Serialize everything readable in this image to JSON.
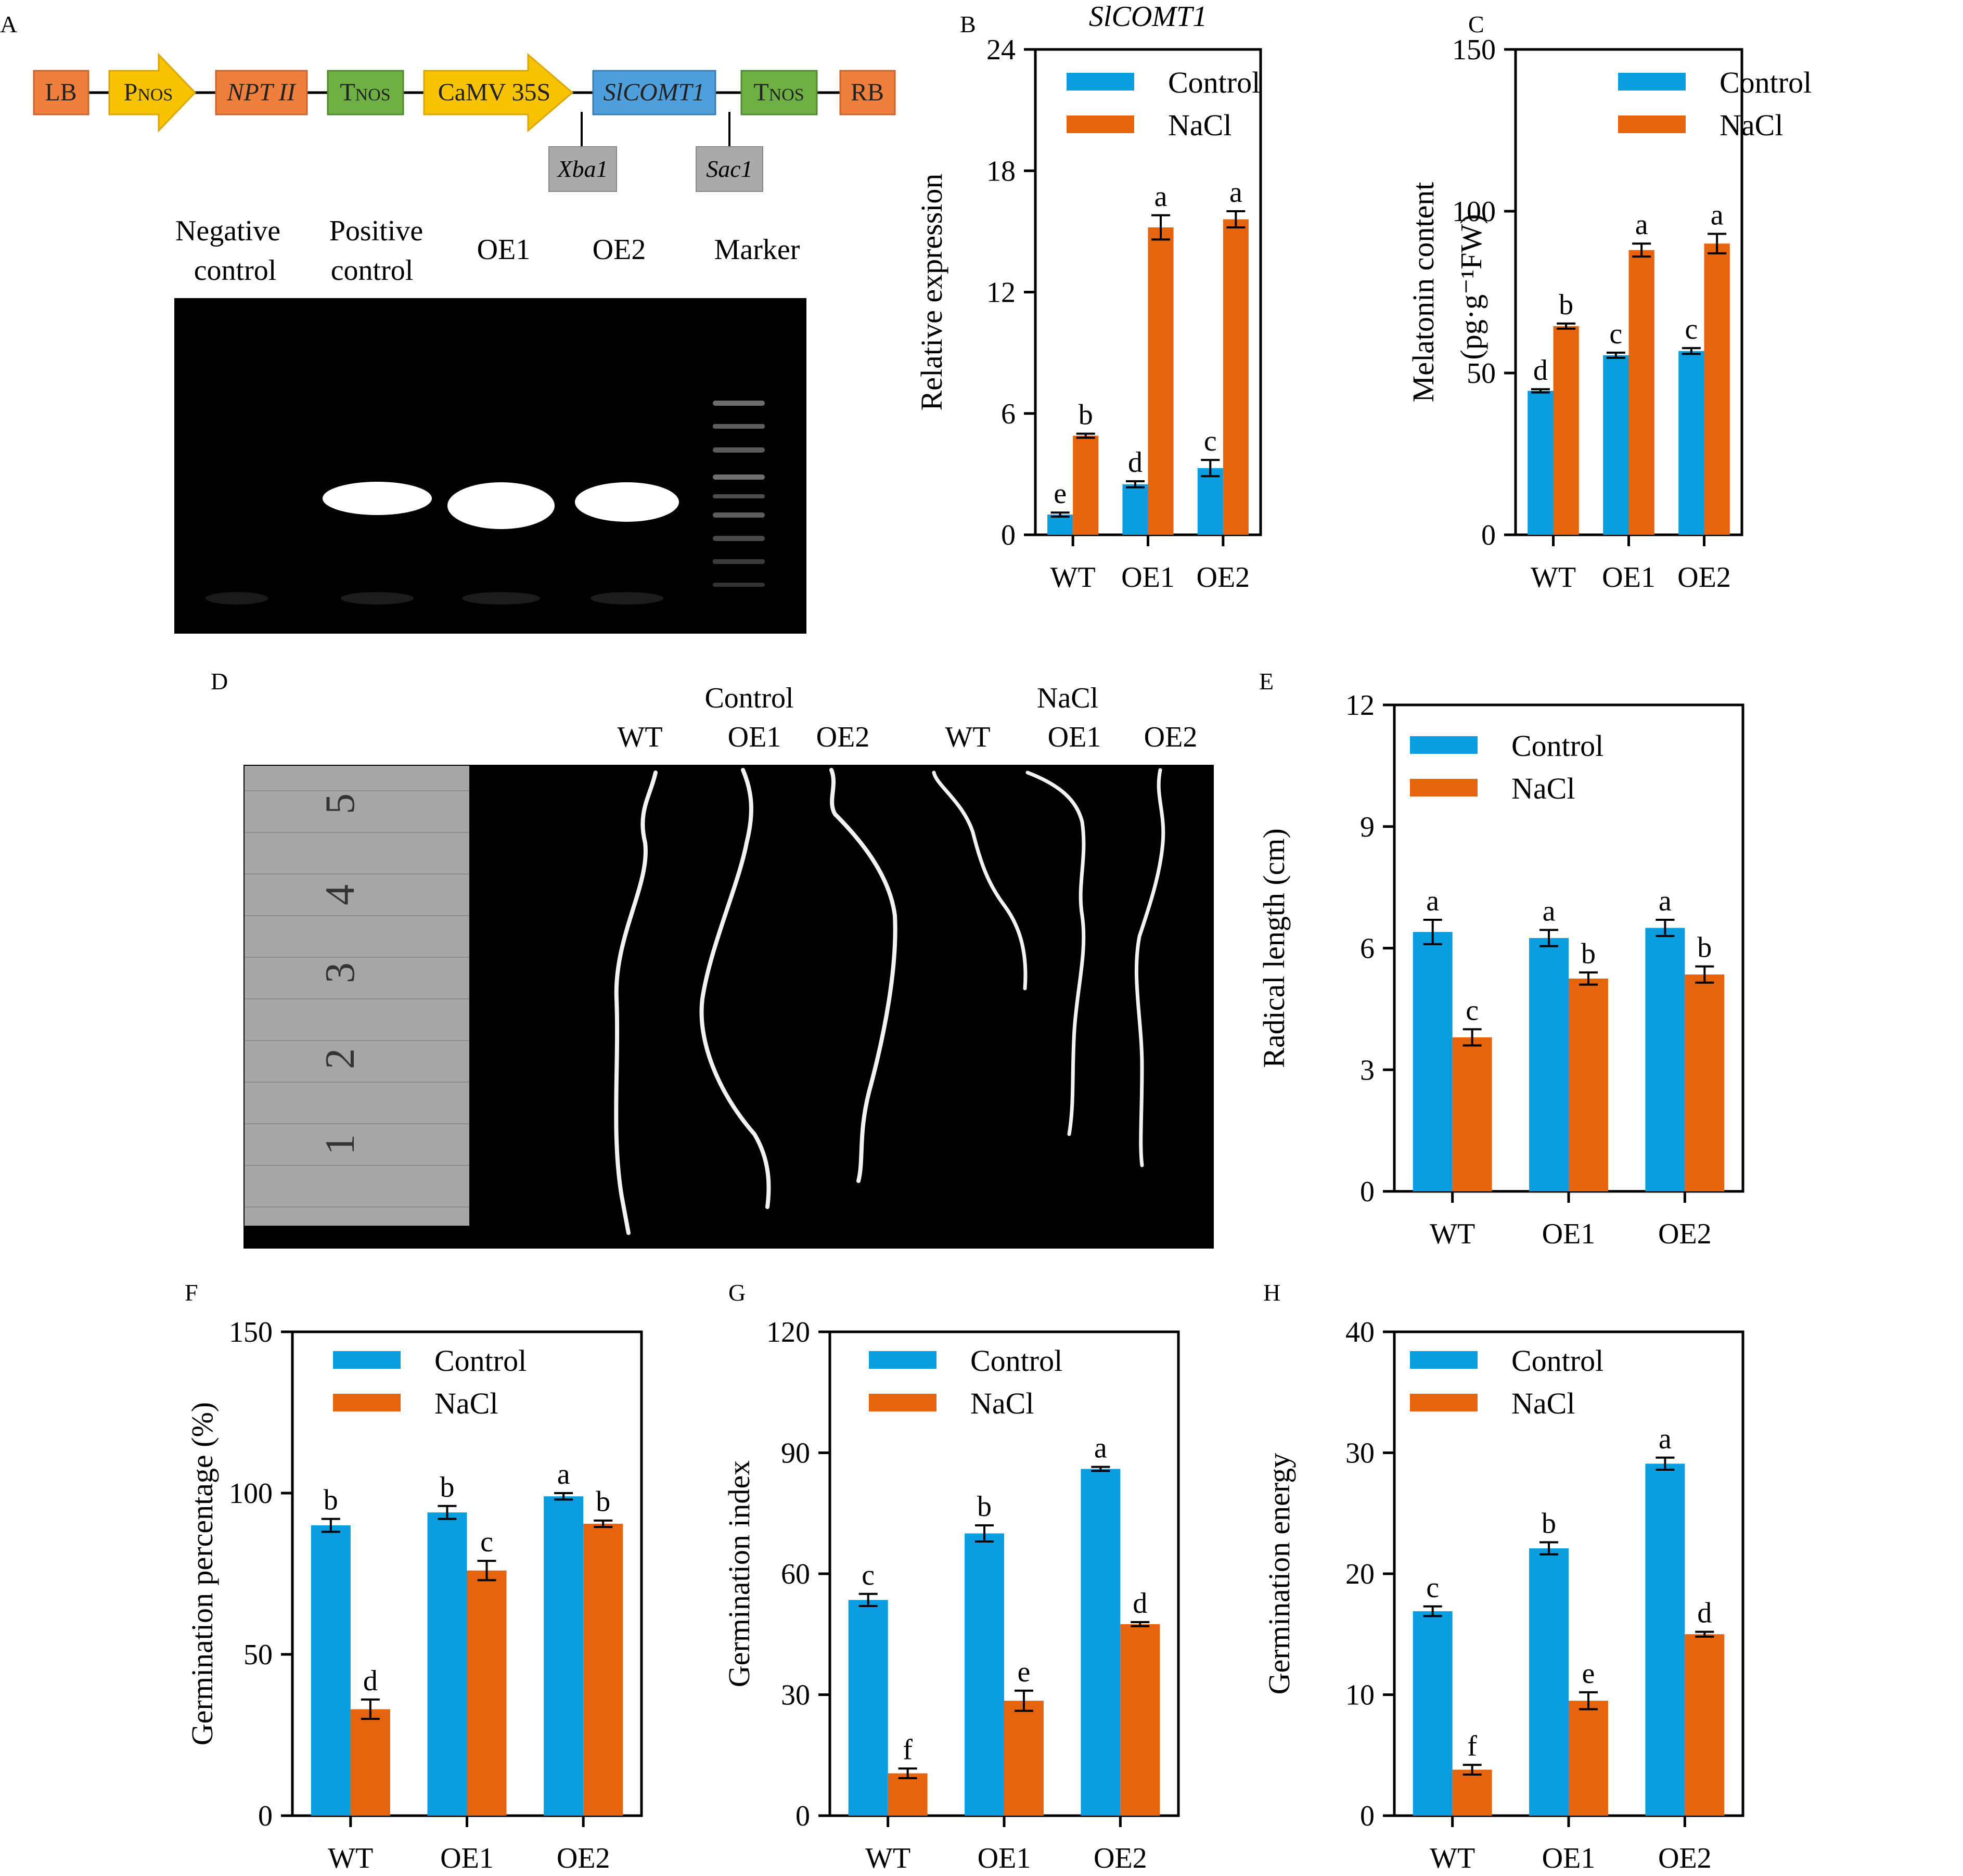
{
  "colors": {
    "control": "#0a9de0",
    "nacl": "#e7640f",
    "lb": "#ef7f3c",
    "pnos": "#f7c200",
    "npt": "#ef7f3c",
    "tnos": "#6eb043",
    "camv": "#f7c200",
    "gene": "#4f9fdc",
    "rb": "#ef7f3c",
    "site": "#aaaaaa",
    "gel": "#000000",
    "ruler": "#a6a6a6"
  },
  "panel_a": {
    "label": "A",
    "construct": [
      {
        "text": "LB",
        "sub": ""
      },
      {
        "text": "P",
        "sub": "NOS"
      },
      {
        "text": "NPT II",
        "sub": ""
      },
      {
        "text": "T",
        "sub": "NOS"
      },
      {
        "text": "CaMV 35S",
        "sub": ""
      },
      {
        "text": "SlCOMT1",
        "sub": ""
      },
      {
        "text": "T",
        "sub": "NOS"
      },
      {
        "text": "RB",
        "sub": ""
      }
    ],
    "sites": [
      "Xba1",
      "Sac1"
    ],
    "gel_lanes": [
      {
        "line1": "Negative",
        "line2": "control"
      },
      {
        "line1": "Positive",
        "line2": "control"
      },
      {
        "line1": "OE1",
        "line2": ""
      },
      {
        "line1": "OE2",
        "line2": ""
      },
      {
        "line1": "Marker",
        "line2": ""
      }
    ]
  },
  "panel_d": {
    "label": "D",
    "groups": [
      "Control",
      "NaCl"
    ],
    "lanes": [
      "WT",
      "OE1",
      "OE2",
      "WT",
      "OE1",
      "OE2"
    ],
    "ruler_marks": [
      "5",
      "4",
      "3",
      "2",
      "1"
    ]
  },
  "chart_data": [
    {
      "id": "B",
      "type": "bar",
      "title": "SlCOMT1",
      "ylabel": "Relative expression",
      "ylabel2": "",
      "ylim": [
        0,
        24
      ],
      "yticks": [
        "0",
        "6",
        "12",
        "18",
        "24"
      ],
      "categories": [
        "WT",
        "OE1",
        "OE2"
      ],
      "series": [
        {
          "name": "Control",
          "values": [
            1.0,
            2.5,
            3.3
          ],
          "errors": [
            0.1,
            0.15,
            0.4
          ],
          "letters": [
            "e",
            "d",
            "c"
          ]
        },
        {
          "name": "NaCl",
          "values": [
            4.9,
            15.2,
            15.6
          ],
          "errors": [
            0.1,
            0.6,
            0.4
          ],
          "letters": [
            "b",
            "a",
            "a"
          ]
        }
      ]
    },
    {
      "id": "C",
      "type": "bar",
      "title": "",
      "ylabel": "Melatonin content",
      "ylabel2": "(pg·g⁻¹FW)",
      "ylim": [
        0,
        150
      ],
      "yticks": [
        "0",
        "50",
        "100",
        "150"
      ],
      "categories": [
        "WT",
        "OE1",
        "OE2"
      ],
      "series": [
        {
          "name": "Control",
          "values": [
            44.5,
            55.5,
            56.8
          ],
          "errors": [
            0.5,
            0.8,
            0.9
          ],
          "letters": [
            "d",
            "c",
            "c"
          ]
        },
        {
          "name": "NaCl",
          "values": [
            64.5,
            88.0,
            90.0
          ],
          "errors": [
            0.8,
            2.0,
            3.0
          ],
          "letters": [
            "b",
            "a",
            "a"
          ]
        }
      ]
    },
    {
      "id": "E",
      "type": "bar",
      "title": "",
      "ylabel": "Radical length (cm)",
      "ylabel2": "",
      "ylim": [
        0,
        12
      ],
      "yticks": [
        "0",
        "3",
        "6",
        "9",
        "12"
      ],
      "categories": [
        "WT",
        "OE1",
        "OE2"
      ],
      "series": [
        {
          "name": "Control",
          "values": [
            6.4,
            6.25,
            6.5
          ],
          "errors": [
            0.3,
            0.2,
            0.2
          ],
          "letters": [
            "a",
            "a",
            "a"
          ]
        },
        {
          "name": "NaCl",
          "values": [
            3.8,
            5.25,
            5.35
          ],
          "errors": [
            0.2,
            0.15,
            0.2
          ],
          "letters": [
            "c",
            "b",
            "b"
          ]
        }
      ]
    },
    {
      "id": "F",
      "type": "bar",
      "title": "",
      "ylabel": "Germination percentage (%)",
      "ylabel2": "",
      "ylim": [
        0,
        150
      ],
      "yticks": [
        "0",
        "50",
        "100",
        "150"
      ],
      "categories": [
        "WT",
        "OE1",
        "OE2"
      ],
      "series": [
        {
          "name": "Control",
          "values": [
            90,
            94,
            99
          ],
          "errors": [
            2,
            2,
            1
          ],
          "letters": [
            "b",
            "b",
            "a"
          ]
        },
        {
          "name": "NaCl",
          "values": [
            33,
            76,
            90.5
          ],
          "errors": [
            3,
            3,
            1
          ],
          "letters": [
            "d",
            "c",
            "b"
          ]
        }
      ]
    },
    {
      "id": "G",
      "type": "bar",
      "title": "",
      "ylabel": "Germination index",
      "ylabel2": "",
      "ylim": [
        0,
        120
      ],
      "yticks": [
        "0",
        "30",
        "60",
        "90",
        "120"
      ],
      "categories": [
        "WT",
        "OE1",
        "OE2"
      ],
      "series": [
        {
          "name": "Control",
          "values": [
            53.5,
            70,
            86
          ],
          "errors": [
            1.5,
            2,
            0.5
          ],
          "letters": [
            "c",
            "b",
            "a"
          ]
        },
        {
          "name": "NaCl",
          "values": [
            10.5,
            28.5,
            47.5
          ],
          "errors": [
            1.2,
            2.5,
            0.5
          ],
          "letters": [
            "f",
            "e",
            "d"
          ]
        }
      ]
    },
    {
      "id": "H",
      "type": "bar",
      "title": "",
      "ylabel": "Germination energy",
      "ylabel2": "",
      "ylim": [
        0,
        40
      ],
      "yticks": [
        "0",
        "10",
        "20",
        "30",
        "40"
      ],
      "categories": [
        "WT",
        "OE1",
        "OE2"
      ],
      "series": [
        {
          "name": "Control",
          "values": [
            16.9,
            22.1,
            29.1
          ],
          "errors": [
            0.4,
            0.5,
            0.5
          ],
          "letters": [
            "c",
            "b",
            "a"
          ]
        },
        {
          "name": "NaCl",
          "values": [
            3.8,
            9.5,
            15.0
          ],
          "errors": [
            0.4,
            0.7,
            0.2
          ],
          "letters": [
            "f",
            "e",
            "d"
          ]
        }
      ]
    }
  ]
}
